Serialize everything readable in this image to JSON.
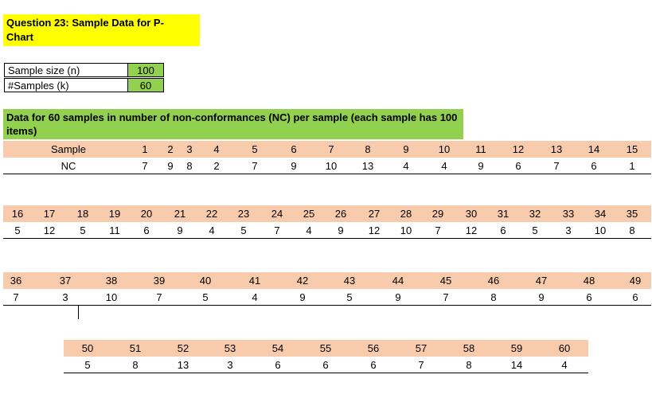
{
  "title": "Question 23: Sample Data for P-\nChart",
  "params": [
    {
      "label": "Sample size (n)",
      "value": "100"
    },
    {
      "label": "#Samples (k)",
      "value": "60"
    }
  ],
  "heading": "Data for 60 samples in number of non-conformances (NC) per sample (each sample has 100 items)",
  "row_labels": {
    "sample": "Sample",
    "nc": "NC"
  },
  "blocks": [
    {
      "samples": [
        "1",
        "2",
        "3",
        "4",
        "5",
        "6",
        "7",
        "8",
        "9",
        "10",
        "11",
        "12",
        "13",
        "14",
        "15"
      ],
      "nc": [
        "7",
        "9",
        "8",
        "2",
        "7",
        "9",
        "10",
        "13",
        "4",
        "4",
        "9",
        "6",
        "7",
        "6",
        "1"
      ]
    },
    {
      "samples": [
        "16",
        "17",
        "18",
        "19",
        "20",
        "21",
        "22",
        "23",
        "24",
        "25",
        "26",
        "27",
        "28",
        "29",
        "30",
        "31",
        "32",
        "33",
        "34",
        "35"
      ],
      "nc": [
        "5",
        "12",
        "5",
        "11",
        "6",
        "9",
        "4",
        "5",
        "7",
        "4",
        "9",
        "12",
        "10",
        "7",
        "12",
        "6",
        "5",
        "3",
        "10",
        "8"
      ]
    },
    {
      "samples": [
        "36",
        "37",
        "38",
        "39",
        "40",
        "41",
        "42",
        "43",
        "44",
        "45",
        "46",
        "47",
        "48",
        "49"
      ],
      "nc": [
        "7",
        "3",
        "10",
        "7",
        "5",
        "4",
        "9",
        "5",
        "9",
        "7",
        "8",
        "9",
        "6",
        "6"
      ]
    },
    {
      "samples": [
        "50",
        "51",
        "52",
        "53",
        "54",
        "55",
        "56",
        "57",
        "58",
        "59",
        "60"
      ],
      "nc": [
        "5",
        "8",
        "13",
        "3",
        "6",
        "6",
        "6",
        "7",
        "8",
        "14",
        "4"
      ]
    }
  ]
}
